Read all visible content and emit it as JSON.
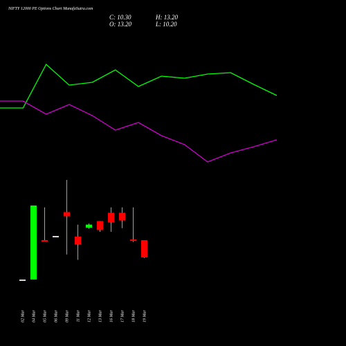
{
  "header": {
    "title": "NIFTY 12000 PE Options Chart MunafaSutra.com",
    "close": "C: 10.30",
    "high": "H: 13.20",
    "open": "O: 13.20",
    "low": "L: 10.20"
  },
  "chart_data": [
    {
      "type": "line",
      "categories": [
        null,
        null,
        null,
        null,
        null,
        null,
        null,
        null,
        null,
        null,
        null,
        null,
        null
      ],
      "ylim": [
        0,
        180
      ],
      "series": [
        {
          "color": "#00ff00",
          "values": [
            104,
            104,
            167,
            137,
            141,
            159,
            135,
            150,
            147,
            153,
            155,
            138,
            122
          ]
        },
        {
          "color": "#cc00cc",
          "values": [
            114,
            114,
            95,
            109,
            93,
            72,
            83,
            64,
            51,
            26,
            39,
            48,
            58
          ]
        }
      ]
    },
    {
      "type": "candlestick",
      "categories": [
        "02 Mar",
        "04 Mar",
        "05 Mar",
        "06 Mar",
        "09 Mar",
        "11 Mar",
        "12 Mar",
        "13 Mar",
        "16 Mar",
        "17 Mar",
        "18 Mar",
        "19 Mar"
      ],
      "ylim": [
        5,
        25
      ],
      "up_color": "#00ff00",
      "down_color": "#ff0000",
      "flat_color": "#dddddd",
      "open": [
        6.6,
        6.6,
        13.2,
        13.9,
        17.9,
        13.8,
        15.3,
        16.4,
        17.8,
        17.8,
        13.3,
        13.2
      ],
      "high": [
        6.6,
        19.0,
        18.7,
        13.9,
        23.3,
        15.8,
        16.0,
        16.4,
        18.7,
        18.7,
        18.7,
        13.2
      ],
      "low": [
        6.6,
        6.6,
        13.0,
        13.9,
        10.8,
        9.9,
        15.1,
        14.6,
        14.6,
        15.2,
        12.9,
        10.2
      ],
      "close": [
        6.6,
        19.0,
        13.0,
        13.9,
        17.2,
        12.5,
        15.8,
        14.9,
        16.2,
        16.5,
        13.1,
        10.3
      ]
    }
  ]
}
